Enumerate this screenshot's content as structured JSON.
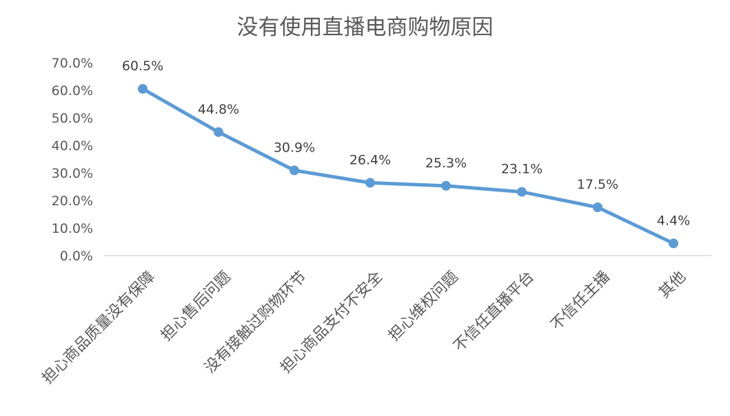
{
  "chart_data": {
    "type": "line",
    "title": "没有使用直播电商购物原因",
    "xlabel": "",
    "ylabel": "",
    "categories": [
      "担心商品质量没有保障",
      "担心售后问题",
      "没有接触过购物环节",
      "担心商品支付不安全",
      "担心维权问题",
      "不信任直播平台",
      "不信任主播",
      "其他"
    ],
    "series": [
      {
        "name": "没有使用直播电商购物原因",
        "values": [
          60.5,
          44.8,
          30.9,
          26.4,
          25.3,
          23.1,
          17.5,
          4.4
        ],
        "color": "#5B9BD5"
      }
    ],
    "data_labels": [
      "60.5%",
      "44.8%",
      "30.9%",
      "26.4%",
      "25.3%",
      "23.1%",
      "17.5%",
      "4.4%"
    ],
    "y_ticks": [
      "0.0%",
      "10.0%",
      "20.0%",
      "30.0%",
      "40.0%",
      "50.0%",
      "60.0%",
      "70.0%"
    ],
    "ylim": [
      0,
      70
    ],
    "grid": false,
    "legend": "none",
    "markers": true
  }
}
